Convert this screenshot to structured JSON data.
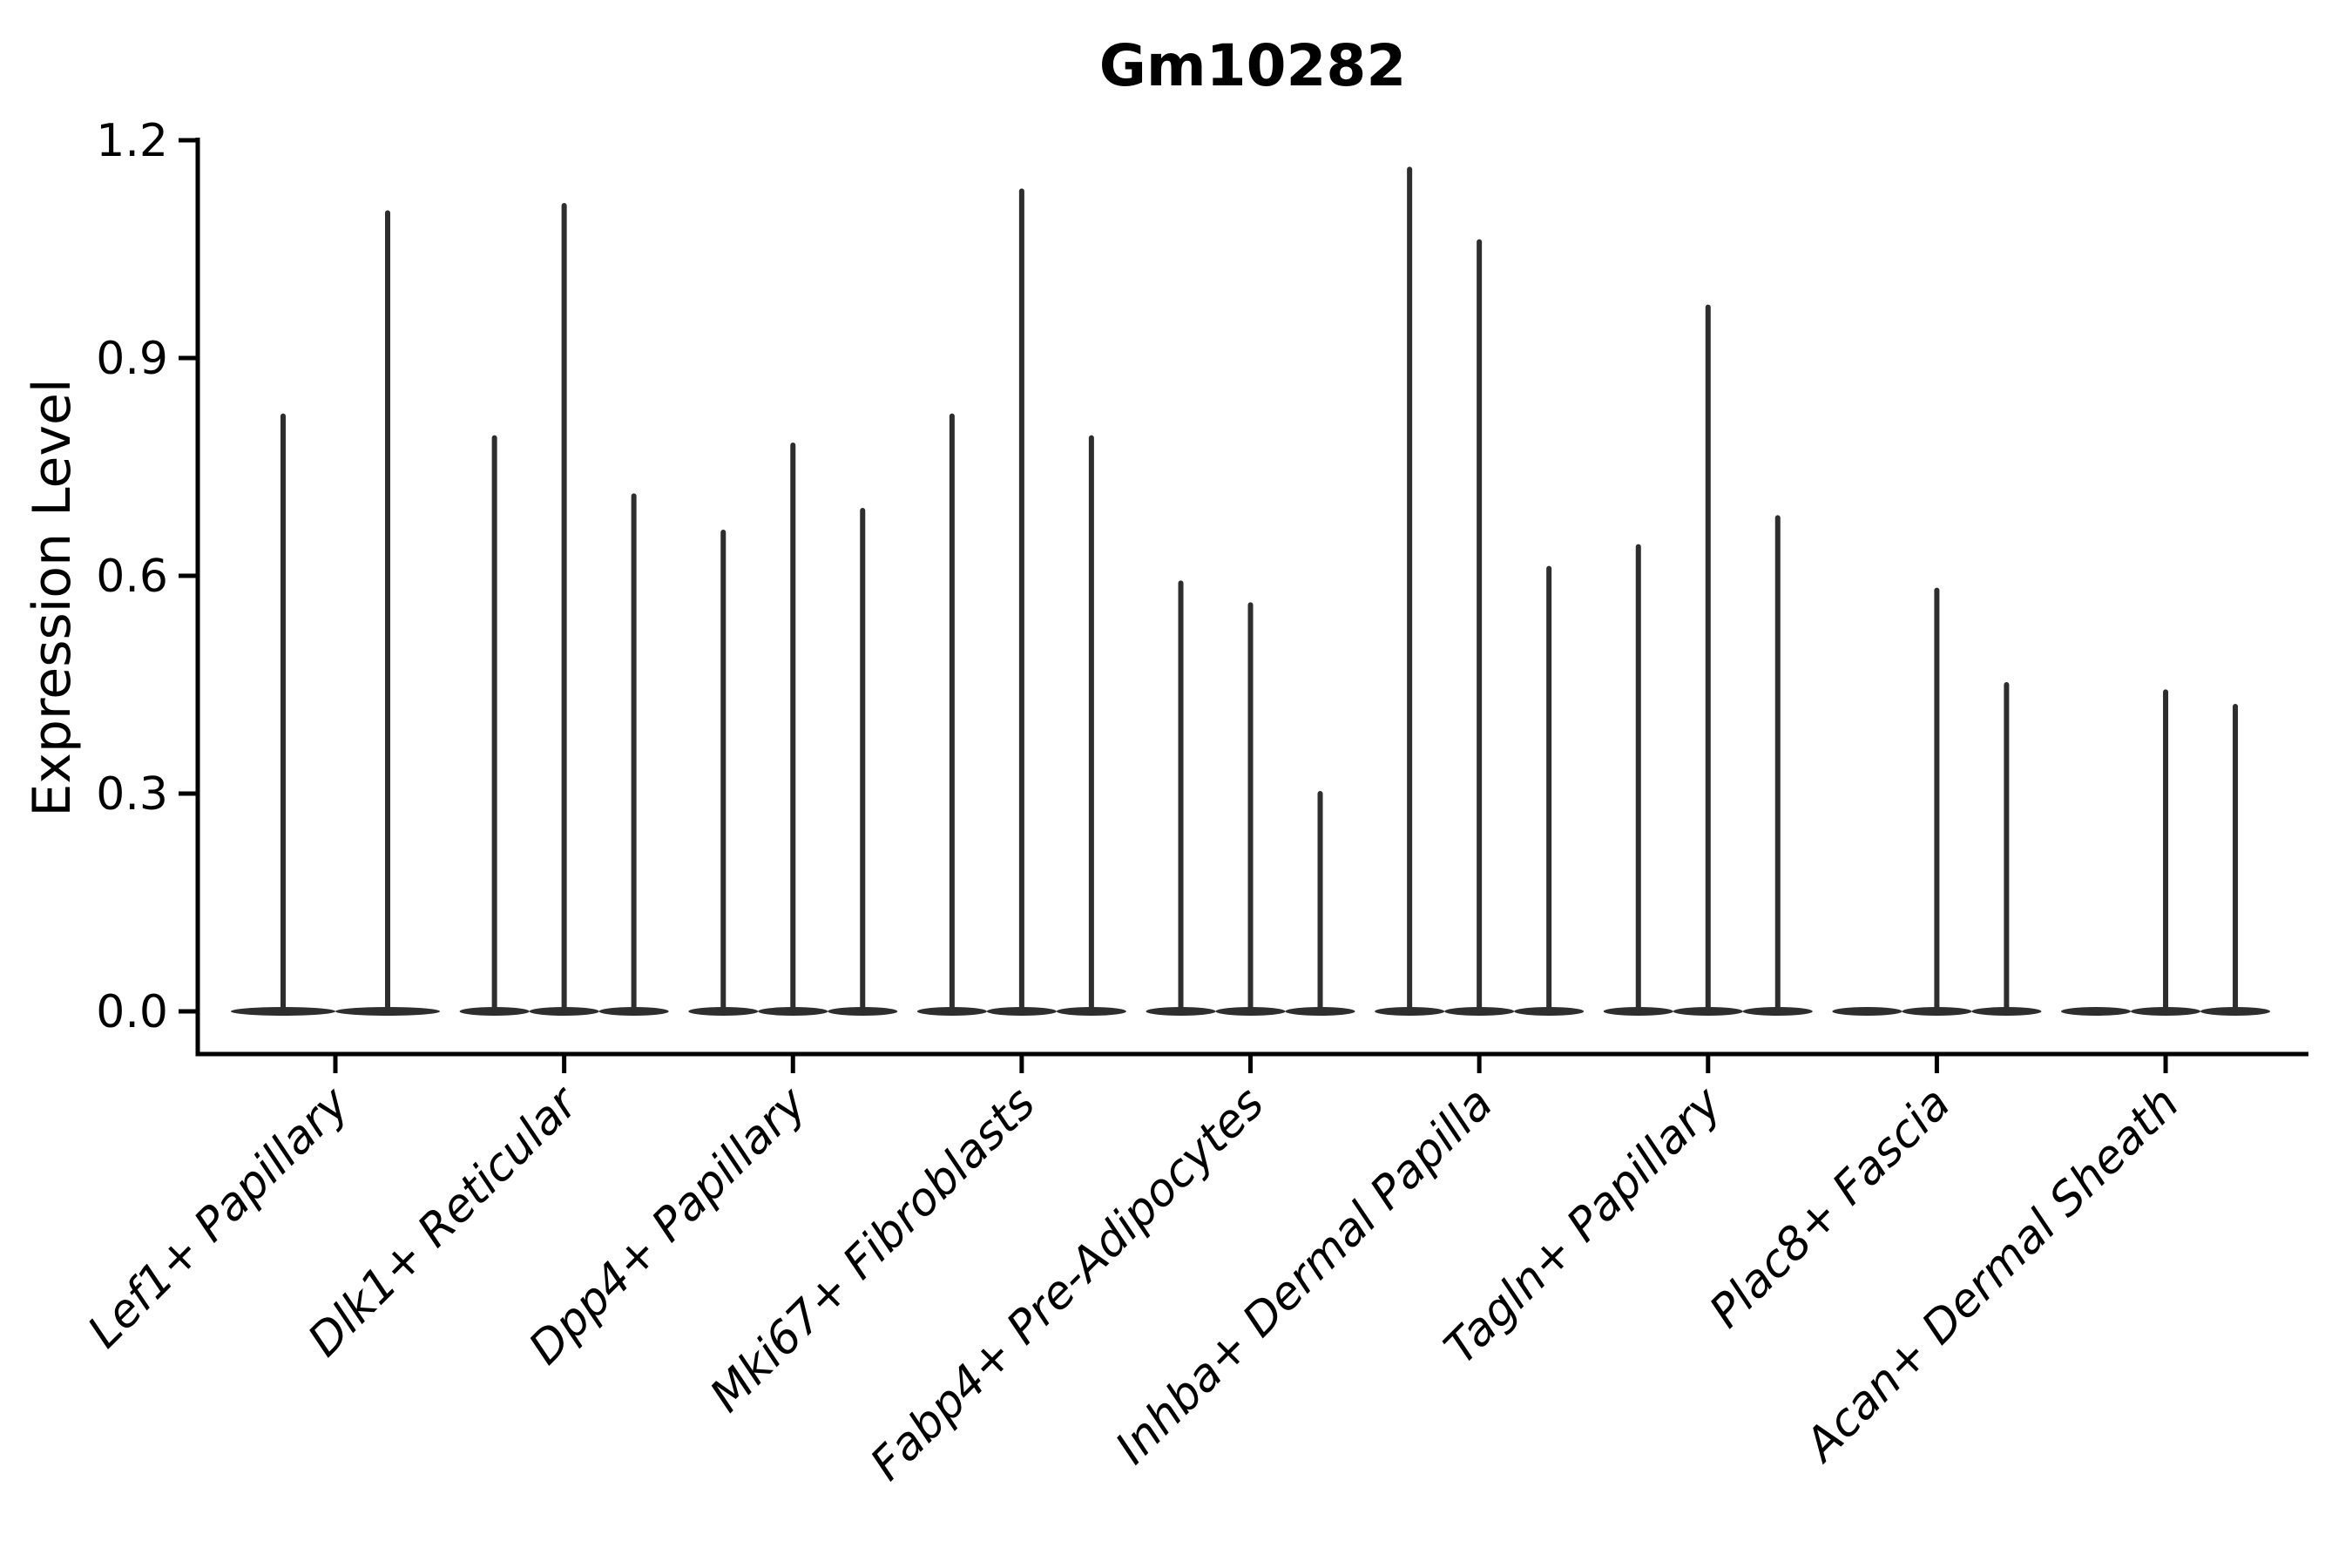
{
  "chart_data": {
    "type": "violin",
    "title": "Gm10282",
    "ylabel": "Expression Level",
    "xlabel": "",
    "ylim": [
      0.0,
      1.2
    ],
    "yticks": [
      0.0,
      0.3,
      0.6,
      0.9,
      1.2
    ],
    "grid": false,
    "legend": null,
    "categories": [
      "Lef1+ Papillary",
      "Dlk1+ Reticular",
      "Dpp4+ Papillary",
      "Mki67+ Fibroblasts",
      "Fabp4+ Pre-Adipocytes",
      "Inhba+ Dermal Papilla",
      "Tagln+ Papillary",
      "Plac8+ Fascia",
      "Acan+ Dermal Sheath"
    ],
    "series": [
      {
        "category": "Lef1+ Papillary",
        "violin_peaks": [
          0.82,
          1.1
        ]
      },
      {
        "category": "Dlk1+ Reticular",
        "violin_peaks": [
          0.79,
          1.11,
          0.71
        ]
      },
      {
        "category": "Dpp4+ Papillary",
        "violin_peaks": [
          0.66,
          0.78,
          0.69
        ]
      },
      {
        "category": "Mki67+ Fibroblasts",
        "violin_peaks": [
          0.82,
          1.13,
          0.79
        ]
      },
      {
        "category": "Fabp4+ Pre-Adipocytes",
        "violin_peaks": [
          0.59,
          0.56,
          0.3
        ]
      },
      {
        "category": "Inhba+ Dermal Papilla",
        "violin_peaks": [
          1.16,
          1.06,
          0.61
        ]
      },
      {
        "category": "Tagln+ Papillary",
        "violin_peaks": [
          0.64,
          0.97,
          0.68
        ]
      },
      {
        "category": "Plac8+ Fascia",
        "violin_peaks": [
          0.0,
          0.58,
          0.45
        ]
      },
      {
        "category": "Acan+ Dermal Sheath",
        "violin_peaks": [
          0.0,
          0.44,
          0.42
        ]
      }
    ],
    "colors": {
      "violin": "#2e2e2e",
      "axis": "#000000",
      "text": "#000000",
      "background": "#ffffff"
    }
  }
}
